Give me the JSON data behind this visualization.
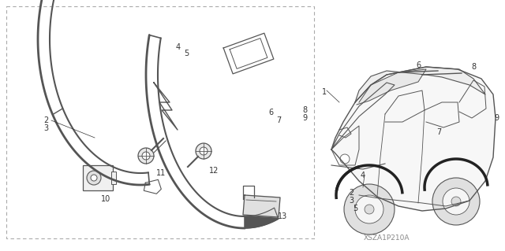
{
  "bg_color": "#ffffff",
  "line_color": "#555555",
  "dark_color": "#222222",
  "watermark": "XSZA1P210A",
  "font_size": 7,
  "font_color": "#333333"
}
